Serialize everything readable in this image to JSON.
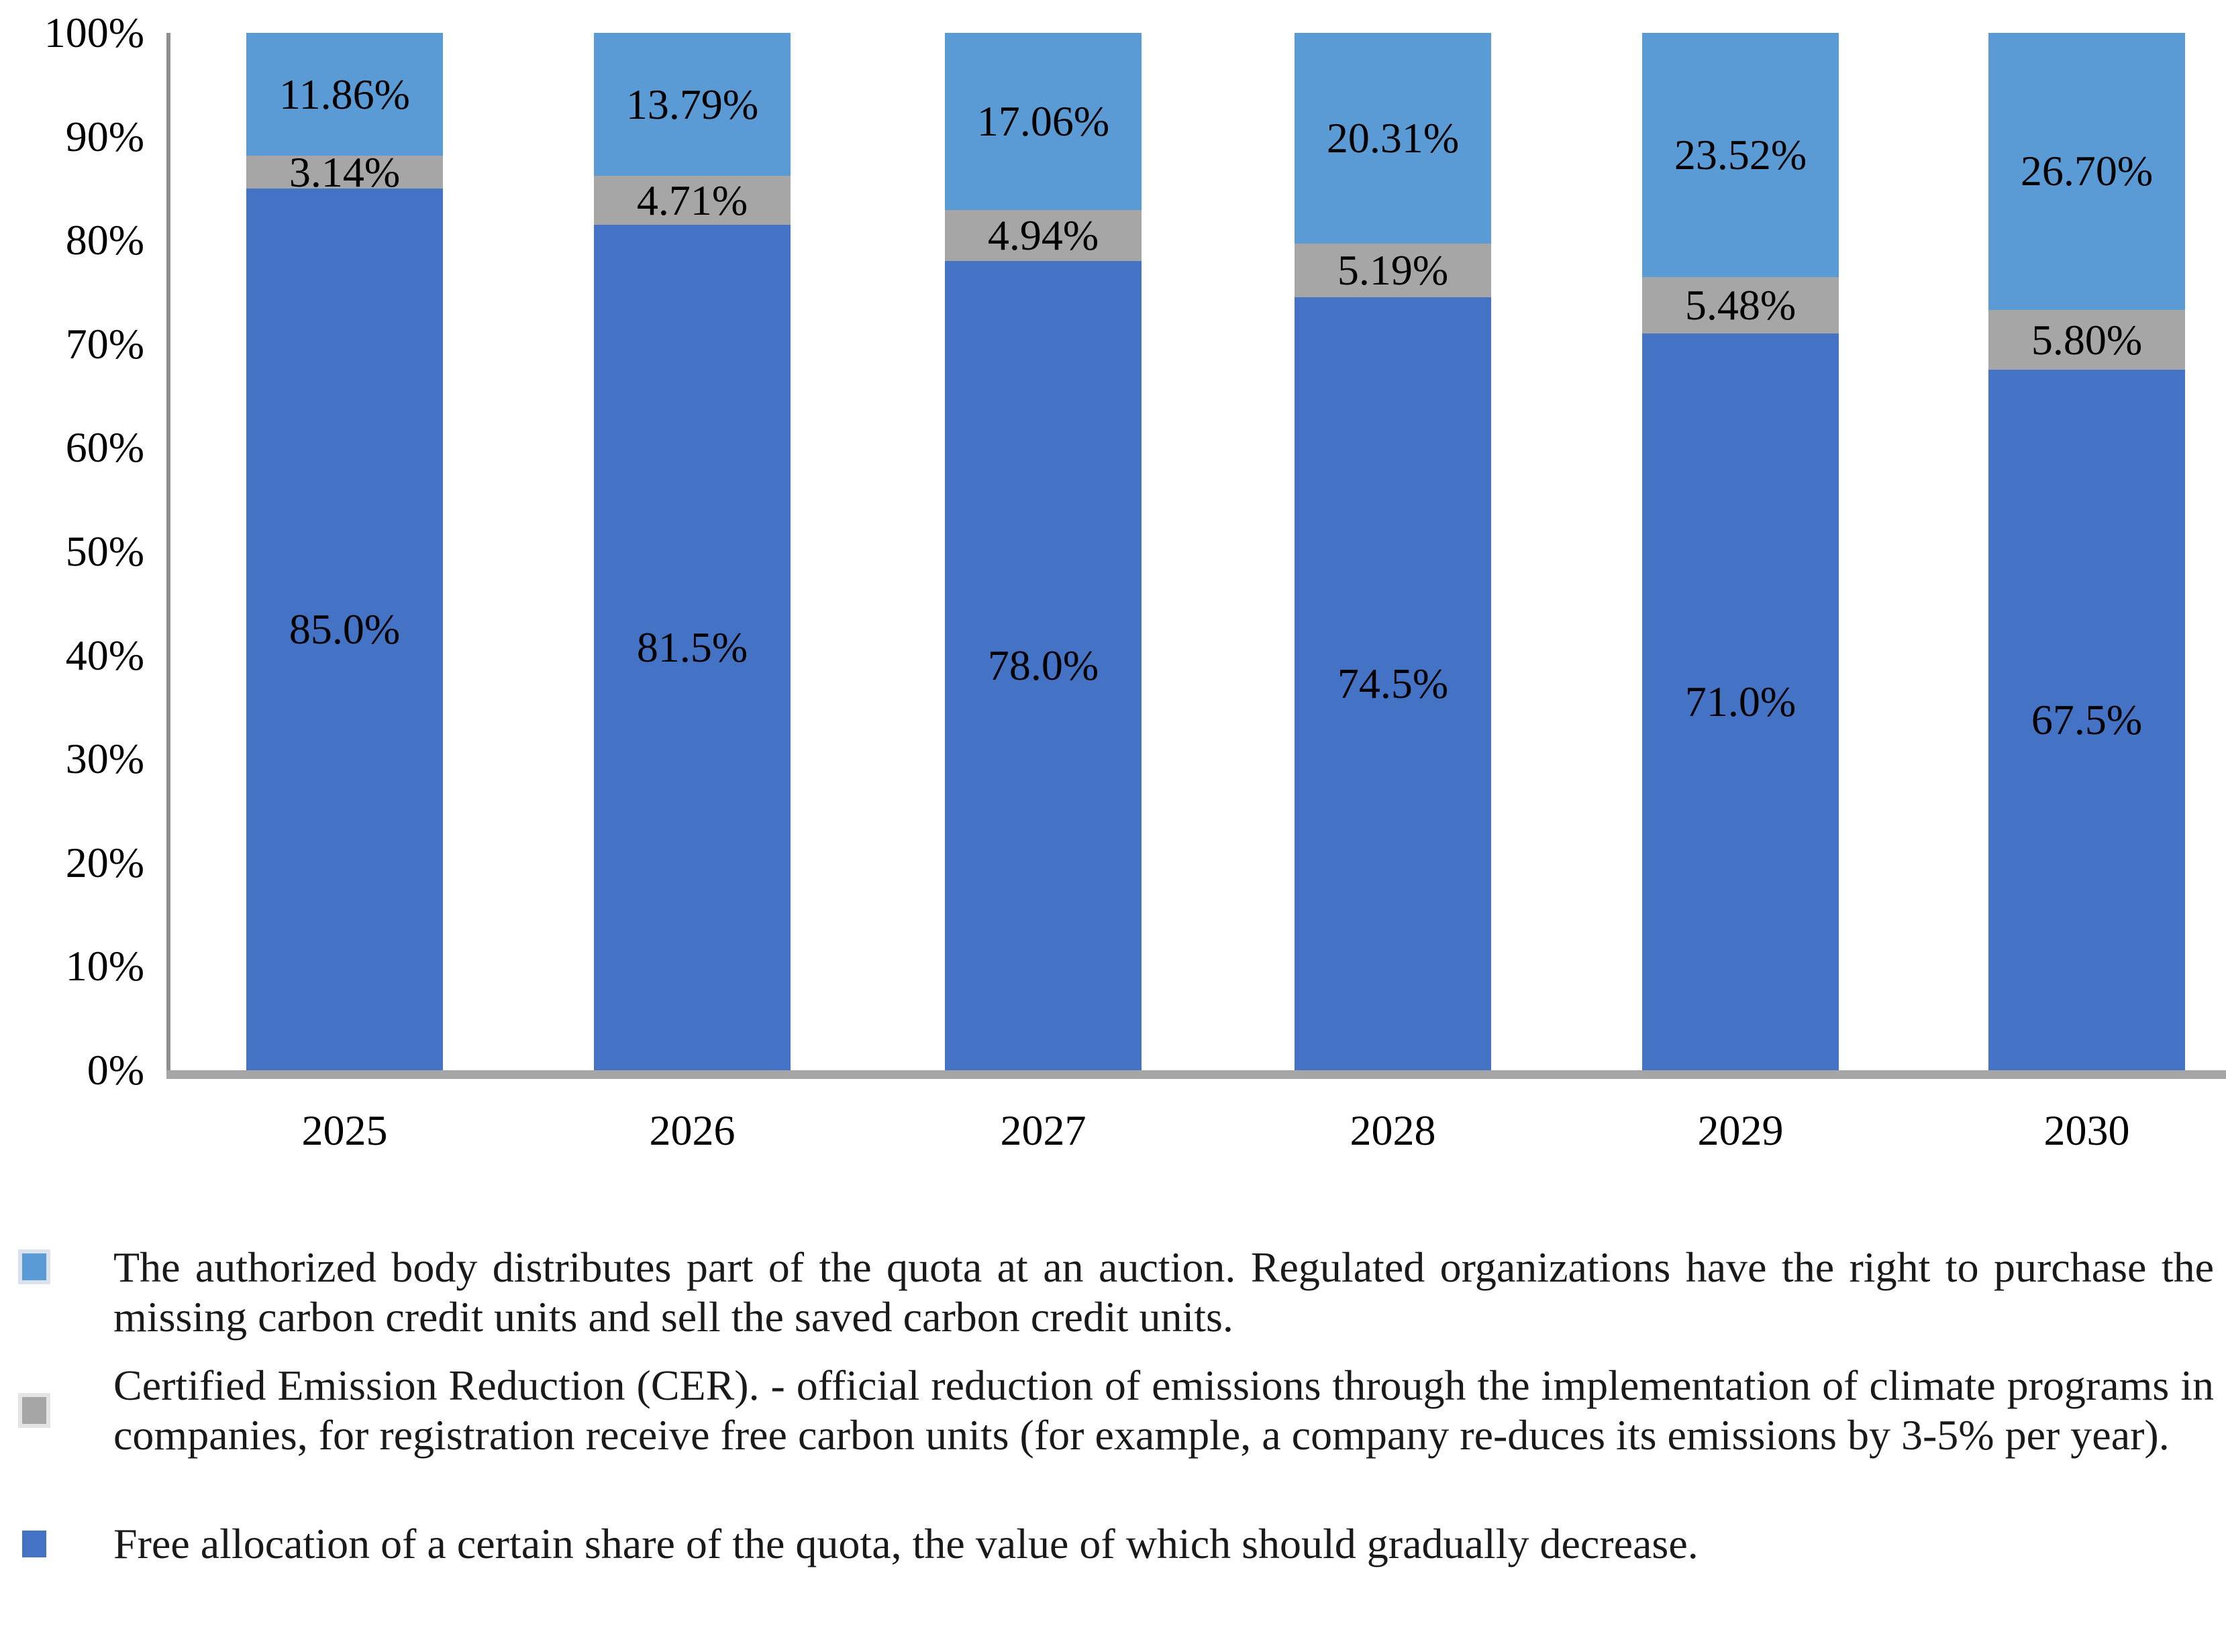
{
  "figure": {
    "background": "#ffffff"
  },
  "chart_data": {
    "type": "bar",
    "stacked": true,
    "title": "",
    "xlabel": "",
    "ylabel": "",
    "categories": [
      "2025",
      "2026",
      "2027",
      "2028",
      "2029",
      "2030"
    ],
    "series": [
      {
        "name": "Free allocation of a certain share of the quota, the value of which should gradually decrease.",
        "color": "#4472C4",
        "values": [
          85.0,
          81.5,
          78.0,
          74.5,
          71.0,
          67.5
        ],
        "labels": [
          "85.0%",
          "81.5%",
          "78.0%",
          "74.5%",
          "71.0%",
          "67.5%"
        ]
      },
      {
        "name": "Certified Emission Reduction (CER). - official reduction of emissions through the implementation of climate programs in companies, for registration receive free carbon units (for example, a company re-duces its emissions by 3-5% per year).",
        "color": "#A6A6A6",
        "values": [
          3.14,
          4.71,
          4.94,
          5.19,
          5.48,
          5.8
        ],
        "labels": [
          "3.14%",
          "4.71%",
          "4.94%",
          "5.19%",
          "5.48%",
          "5.80%"
        ]
      },
      {
        "name": "The authorized body distributes part of the quota at an auction. Regulated organizations have the right to purchase the missing carbon credit units and sell the saved carbon credit units.",
        "color": "#5B9BD5",
        "values": [
          11.86,
          13.79,
          17.06,
          20.31,
          23.52,
          26.7
        ],
        "labels": [
          "11.86%",
          "13.79%",
          "17.06%",
          "20.31%",
          "23.52%",
          "26.70%"
        ]
      }
    ],
    "y_axis": {
      "min": 0,
      "max": 100,
      "tick_step": 10,
      "tick_labels": [
        "0%",
        "10%",
        "20%",
        "30%",
        "40%",
        "50%",
        "60%",
        "70%",
        "80%",
        "90%",
        "100%"
      ]
    },
    "grid": false,
    "legend_position": "bottom"
  },
  "legend": {
    "items": [
      {
        "marker_color": "#5B9BD5",
        "text": "The authorized body distributes part of the quota at an auction. Regulated organizations have the right to purchase the missing carbon credit units and sell the saved carbon credit units."
      },
      {
        "marker_color": "#A6A6A6",
        "text": "Certified Emission Reduction (CER). - official reduction of emissions through the implementation of climate programs in companies, for registration receive free carbon units (for example, a company re-duces its emissions by 3-5% per year)."
      },
      {
        "marker_color": "#4472C4",
        "text": "Free allocation of a certain share of the quota, the value of which should gradually decrease."
      }
    ]
  },
  "colors": {
    "y_axis_line": "#8F8F8F",
    "x_axis_line": "#A6A6A6",
    "label_text": "#000000"
  }
}
